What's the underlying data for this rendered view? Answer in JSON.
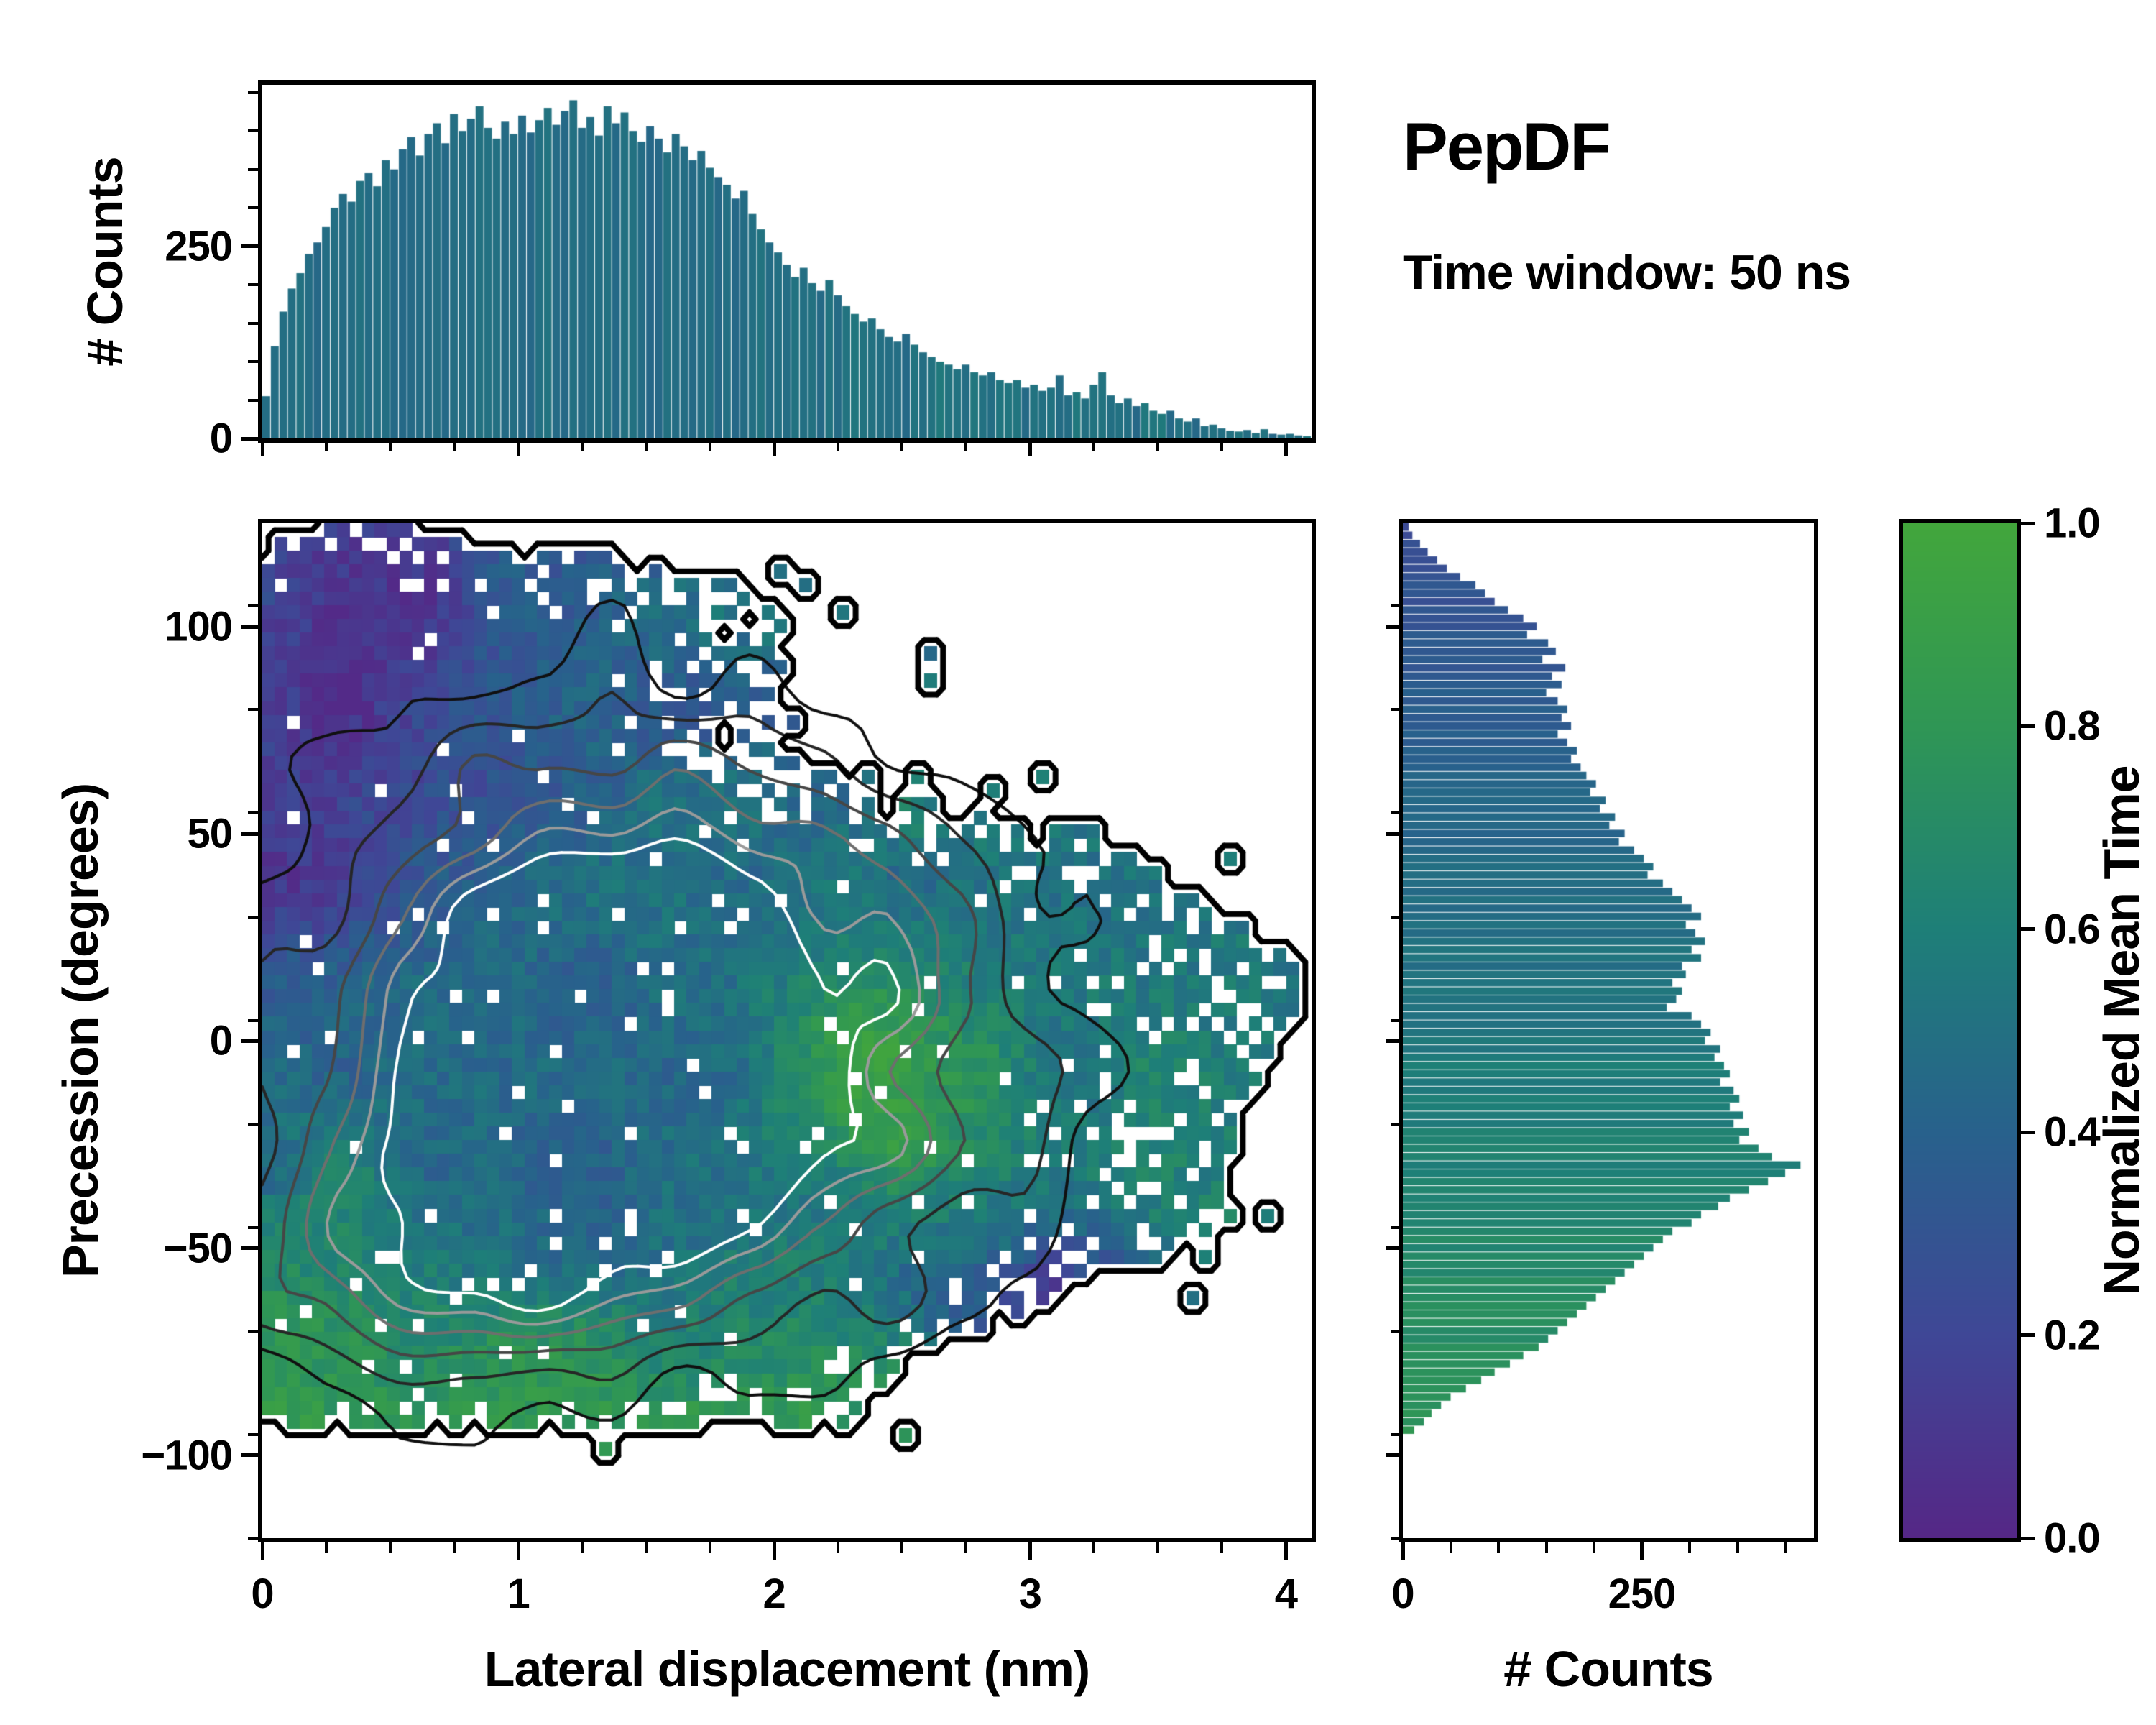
{
  "annotations": {
    "dataset": "PepDF",
    "time_window": "Time window: 50 ns"
  },
  "colors": {
    "background": "#ffffff",
    "axis": "#000000",
    "colormap_stops": [
      [
        0,
        "#552786"
      ],
      [
        0.2,
        "#3f4796"
      ],
      [
        0.4,
        "#28618c"
      ],
      [
        0.6,
        "#1e7f78"
      ],
      [
        0.8,
        "#2f9655"
      ],
      [
        1,
        "#42a63c"
      ]
    ]
  },
  "chart_data": [
    {
      "id": "top_histogram",
      "type": "bar",
      "orientation": "vertical",
      "xlabel": "",
      "ylabel": "# Counts",
      "x_range": [
        0,
        4.1
      ],
      "ylim": [
        0,
        460
      ],
      "yticks": [
        0,
        250
      ],
      "yminor_step": 50,
      "values": [
        55,
        120,
        165,
        195,
        215,
        240,
        255,
        275,
        300,
        318,
        308,
        335,
        345,
        328,
        362,
        350,
        376,
        392,
        368,
        396,
        410,
        384,
        422,
        400,
        416,
        432,
        404,
        390,
        412,
        396,
        420,
        398,
        414,
        430,
        408,
        426,
        440,
        404,
        418,
        394,
        432,
        410,
        424,
        400,
        386,
        406,
        390,
        372,
        396,
        380,
        362,
        374,
        352,
        340,
        330,
        312,
        322,
        292,
        272,
        255,
        242,
        226,
        210,
        222,
        202,
        192,
        206,
        186,
        172,
        162,
        152,
        156,
        142,
        132,
        126,
        136,
        122,
        112,
        106,
        100,
        96,
        90,
        96,
        86,
        82,
        86,
        76,
        72,
        76,
        66,
        70,
        62,
        66,
        82,
        56,
        60,
        52,
        70,
        86,
        56,
        46,
        52,
        42,
        46,
        36,
        32,
        36,
        26,
        22,
        26,
        16,
        18,
        13,
        10,
        9,
        11,
        7,
        12,
        6,
        5,
        6,
        4,
        3
      ],
      "bar_color_value_base": 0.44
    },
    {
      "id": "joint_heatmap",
      "type": "heatmap",
      "xlabel": "Lateral displacement (nm)",
      "ylabel": "Precession (degrees)",
      "xlim": [
        0,
        4.1
      ],
      "ylim": [
        -120,
        125
      ],
      "xticks": [
        0,
        1,
        2,
        3,
        4
      ],
      "xminor_step": 0.25,
      "yticks": [
        -100,
        -50,
        0,
        50,
        100
      ],
      "yminor_step": 25,
      "color_meaning": "Normalized Mean Time",
      "colormap": "viridis-truncated",
      "grid": [
        84,
        74
      ],
      "generator": {
        "seed": 42,
        "x_vertex": 4.05,
        "y_vertex": 5,
        "curve_pos": 0.00045,
        "curve_neg": 0.00022,
        "x_clamp_min": 2.12,
        "ymax_base": 124,
        "ymax_slope": 10,
        "ymax_xstart": 0.5,
        "ymin": -93,
        "boundary_noise_x": 0.55,
        "boundary_noise_y": 9,
        "hole_base": 0.045,
        "edge_hole": 0.32,
        "topright_hole": 0.17,
        "isolated_prob": 0.03,
        "value_field": {
          "base": 0.43,
          "noise_amp": 0.1,
          "cell_noise": 0.09,
          "terms": [
            {
              "type": "gauss",
              "x": 0.35,
              "sx": 0.55,
              "y": 95,
              "sy": 38,
              "amp": -0.3
            },
            {
              "type": "gauss",
              "x": 0.05,
              "sx": 0.35,
              "y": 55,
              "sy": 30,
              "amp": -0.18
            },
            {
              "type": "sigmoid_x",
              "x0": 2.45,
              "k": 0.35,
              "amp": 0.17,
              "ymin": -45
            },
            {
              "type": "bottom",
              "y0": -35,
              "scale": 80,
              "amp": 0.5
            },
            {
              "type": "gauss",
              "x": 2.35,
              "sx": 0.28,
              "y": -8,
              "sy": 18,
              "amp": 0.5
            },
            {
              "type": "gauss",
              "x": 3.0,
              "sx": 0.38,
              "y": -63,
              "sy": 14,
              "amp": -0.45
            },
            {
              "type": "gauss",
              "x": 0.3,
              "sx": 0.4,
              "y": -45,
              "sy": 25,
              "amp": 0.18
            }
          ]
        },
        "contour_field": {
          "noise_amp": 0.12,
          "boundary": {
            "level": 0.5,
            "color": "#000000",
            "width": 8
          },
          "levels": [
            [
              0.22,
              "#101010",
              4
            ],
            [
              0.36,
              "#262626",
              4
            ],
            [
              0.5,
              "#464646",
              4
            ],
            [
              0.62,
              "#6e6e6e",
              4
            ],
            [
              0.72,
              "#9a9a9a",
              4
            ],
            [
              0.81,
              "#ffffff",
              4
            ]
          ],
          "gaussians": [
            {
              "x": 1.3,
              "sx": 0.78,
              "y": 18,
              "sy": 42,
              "amp": 1.0
            },
            {
              "x": 1.05,
              "sx": 0.8,
              "y": -42,
              "sy": 28,
              "amp": 0.55
            },
            {
              "x": 2.5,
              "sx": 0.6,
              "y": -5,
              "sy": 45,
              "amp": 0.4
            },
            {
              "x": 0.6,
              "sx": 0.5,
              "y": -60,
              "sy": 20,
              "amp": 0.3
            }
          ]
        }
      }
    },
    {
      "id": "side_histogram",
      "type": "bar",
      "orientation": "horizontal",
      "xlabel": "# Counts",
      "y_range": [
        125,
        -95
      ],
      "xlim": [
        0,
        430
      ],
      "xticks": [
        0,
        250
      ],
      "xminor_step": 50,
      "values": [
        6,
        10,
        18,
        26,
        36,
        46,
        60,
        76,
        86,
        96,
        110,
        126,
        140,
        130,
        152,
        160,
        146,
        170,
        156,
        166,
        150,
        162,
        172,
        166,
        176,
        162,
        172,
        182,
        176,
        186,
        192,
        202,
        196,
        212,
        206,
        222,
        216,
        232,
        226,
        242,
        252,
        262,
        256,
        272,
        282,
        292,
        302,
        312,
        296,
        306,
        316,
        302,
        312,
        292,
        296,
        282,
        292,
        286,
        276,
        302,
        312,
        322,
        316,
        332,
        326,
        336,
        342,
        332,
        346,
        352,
        342,
        356,
        346,
        362,
        352,
        372,
        386,
        416,
        400,
        382,
        362,
        342,
        330,
        312,
        302,
        282,
        272,
        262,
        252,
        242,
        232,
        222,
        212,
        202,
        192,
        182,
        172,
        162,
        152,
        142,
        126,
        112,
        96,
        82,
        66,
        50,
        40,
        30,
        22,
        12
      ],
      "bar_color_value_range": [
        0.26,
        0.78
      ]
    },
    {
      "id": "colorbar",
      "type": "colorbar",
      "label": "Normalized Mean Time",
      "range": [
        0,
        1
      ],
      "ticks": [
        0.0,
        0.2,
        0.4,
        0.6,
        0.8,
        1.0
      ]
    }
  ]
}
